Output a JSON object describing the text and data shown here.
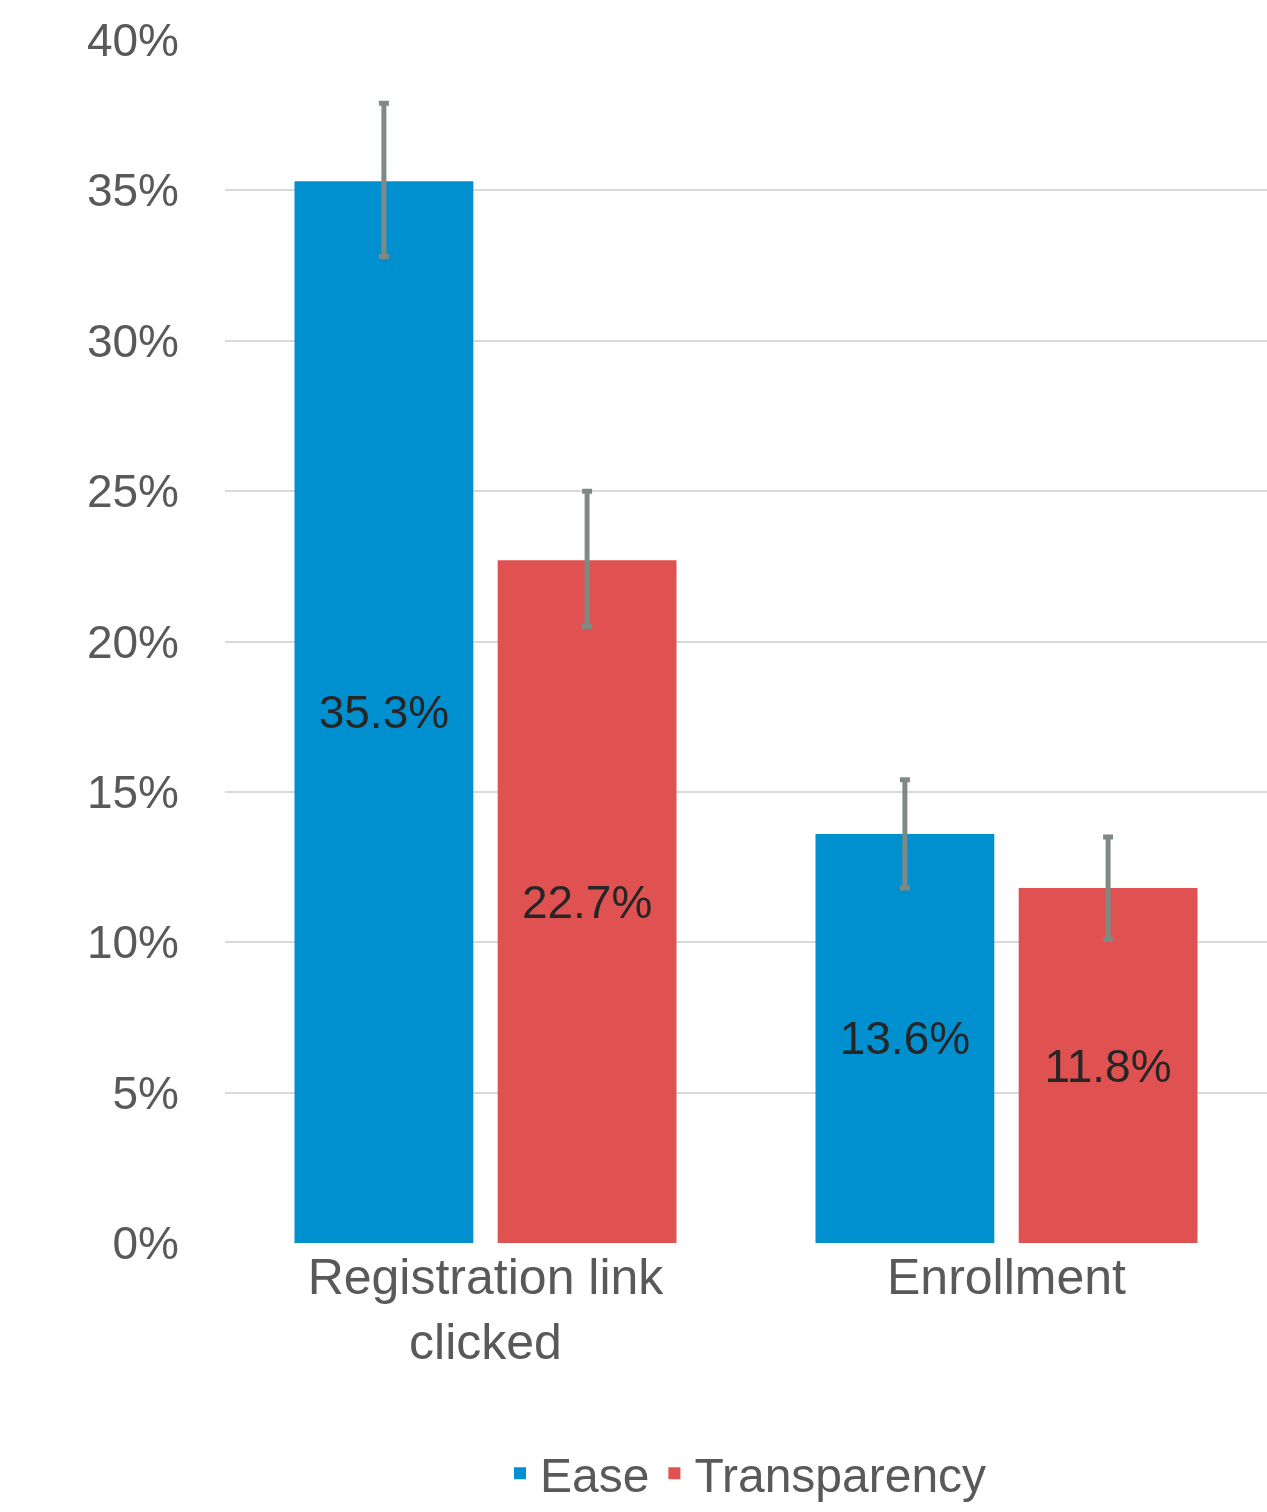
{
  "chart_data": {
    "type": "bar",
    "categories": [
      "Registration link clicked",
      "Enrollment"
    ],
    "series": [
      {
        "name": "Ease",
        "color": "#0090d0",
        "values": [
          35.3,
          13.6
        ],
        "value_labels": [
          "35.3%",
          "13.6%"
        ],
        "errors": [
          [
            32.8,
            37.9
          ],
          [
            11.8,
            15.4
          ]
        ]
      },
      {
        "name": "Transparency",
        "color": "#e05252",
        "values": [
          22.7,
          11.8
        ],
        "value_labels": [
          "22.7%",
          "11.8%"
        ],
        "errors": [
          [
            20.5,
            25.0
          ],
          [
            10.1,
            13.5
          ]
        ]
      }
    ],
    "ylim": [
      0,
      40
    ],
    "yticks": [
      {
        "value": 0,
        "label": "0%"
      },
      {
        "value": 5,
        "label": "5%"
      },
      {
        "value": 10,
        "label": "10%"
      },
      {
        "value": 15,
        "label": "15%"
      },
      {
        "value": 20,
        "label": "20%"
      },
      {
        "value": 25,
        "label": "25%"
      },
      {
        "value": 30,
        "label": "30%"
      },
      {
        "value": 35,
        "label": "35%"
      },
      {
        "value": 40,
        "label": "40%"
      }
    ],
    "grid": "y",
    "legend": "bottom"
  }
}
